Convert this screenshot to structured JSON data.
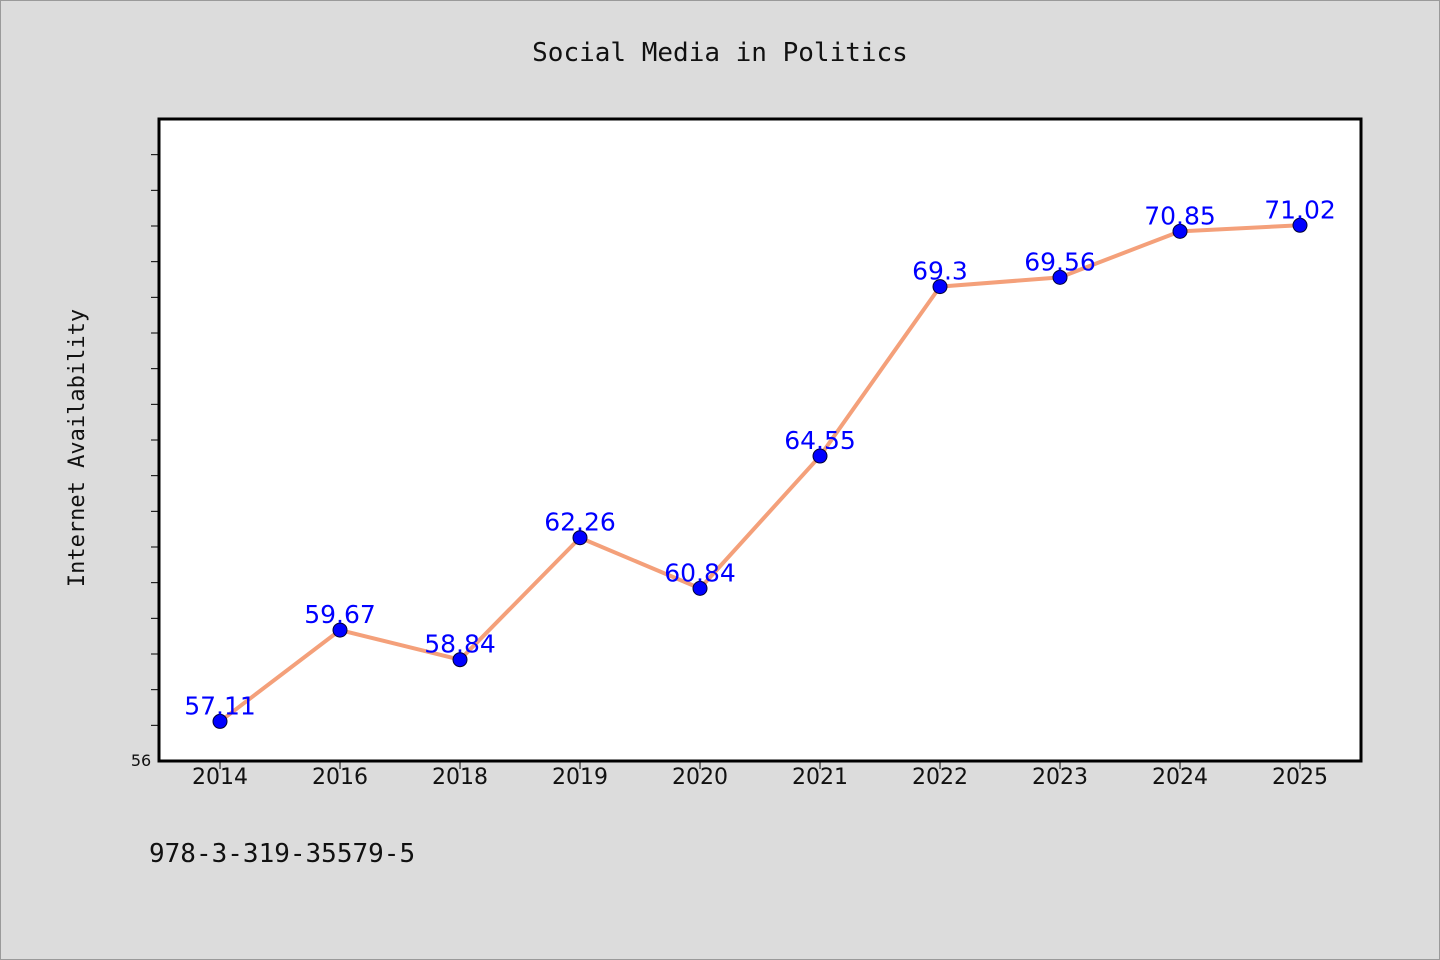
{
  "chart_data": {
    "type": "line",
    "title": "Social Media in Politics",
    "xlabel": "",
    "ylabel": "Internet Availability",
    "categories": [
      "2014",
      "2016",
      "2018",
      "2019",
      "2020",
      "2021",
      "2022",
      "2023",
      "2024",
      "2025"
    ],
    "series": [
      {
        "values": [
          57.11,
          59.67,
          58.84,
          62.26,
          60.84,
          64.55,
          69.3,
          69.56,
          70.85,
          71.02
        ]
      }
    ],
    "data_labels": [
      "57.11",
      "59.67",
      "58.84",
      "62.26",
      "60.84",
      "64.55",
      "69.3",
      "69.56",
      "70.85",
      "71.02"
    ],
    "ylim": [
      56,
      74
    ],
    "yticks_labeled": [
      "56"
    ],
    "grid": false,
    "line_color": "#f4a07a",
    "marker_color": "#0000ff",
    "label_color": "#0000ff"
  },
  "footer": {
    "isbn": "978-3-319-35579-5"
  }
}
